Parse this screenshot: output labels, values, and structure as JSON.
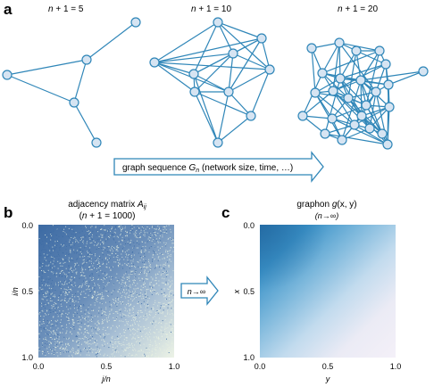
{
  "panel_a": {
    "letter": "a",
    "graphs": [
      {
        "prefix": "n",
        "mid": " + 1 = ",
        "num": "5"
      },
      {
        "prefix": "n",
        "mid": " + 1 = ",
        "num": "10"
      },
      {
        "prefix": "n",
        "mid": " + 1 = ",
        "num": "20"
      }
    ],
    "arrow_label_pre": "graph sequence ",
    "arrow_label_sym": "G",
    "arrow_label_sub": "n",
    "arrow_label_post": " (network size, time, …)"
  },
  "panel_b": {
    "letter": "b",
    "title_pre": "adjacency matrix ",
    "title_sym": "A",
    "title_sub": "ij",
    "subtitle_pre": "(",
    "subtitle_sym": "n",
    "subtitle_post": " + 1 =  1000)",
    "ylabel": "i/n",
    "xlabel": "j/n",
    "xticks": [
      "0.0",
      "0.5",
      "1.0"
    ],
    "yticks": [
      "0.0",
      "0.5",
      "1.0"
    ]
  },
  "middle_arrow": {
    "label": "n→∞"
  },
  "panel_c": {
    "letter": "c",
    "title_pre": "graphon ",
    "title_sym": "g",
    "title_args": "(x, y)",
    "subtitle": "(n→∞)",
    "ylabel": "x",
    "xlabel": "y",
    "xticks": [
      "0.0",
      "0.5",
      "1.0"
    ],
    "yticks": [
      "0.0",
      "0.5",
      "1.0"
    ]
  },
  "colors": {
    "edge": "#2f86b8",
    "node_fill": "#d6e4f2",
    "node_stroke": "#2f86b8",
    "matrix_dark": "#3f6ea6",
    "matrix_light": "#e9f1e1",
    "graphon_dark": "#2f83bd",
    "graphon_light": "#f2eef7"
  }
}
